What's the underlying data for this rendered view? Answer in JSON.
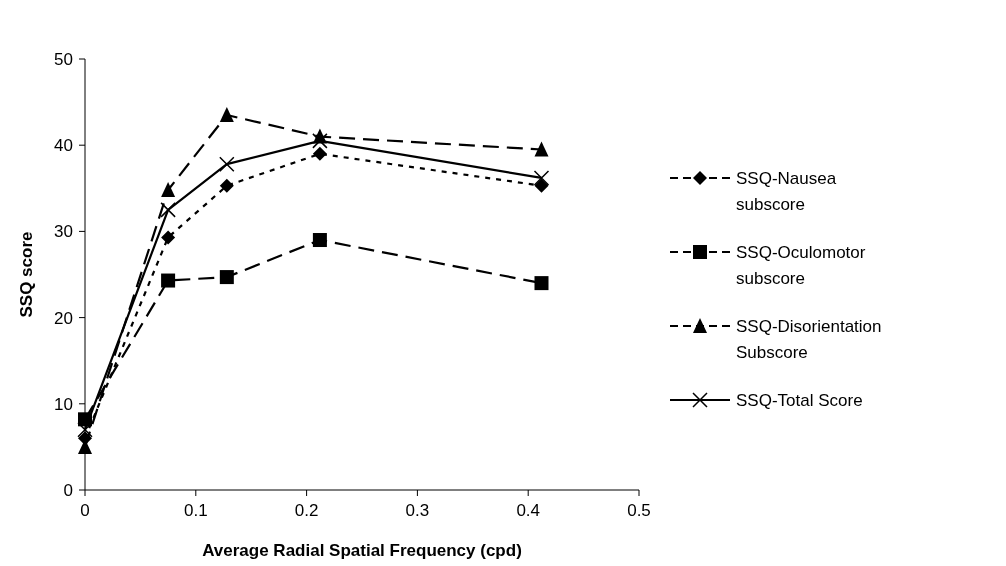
{
  "chart_data": {
    "type": "line",
    "xlabel": "Average Radial Spatial Frequency (cpd)",
    "ylabel": "SSQ score",
    "x": [
      0,
      0.075,
      0.128,
      0.212,
      0.412
    ],
    "xlim": [
      0,
      0.5
    ],
    "xticks": [
      0,
      0.1,
      0.2,
      0.3,
      0.4,
      0.5
    ],
    "ylim": [
      0,
      50
    ],
    "yticks": [
      0,
      10,
      20,
      30,
      40,
      50
    ],
    "grid": false,
    "legend": "right",
    "series": [
      {
        "name": "SSQ-Nausea subscore",
        "color": "#000000",
        "marker": "diamond",
        "line_style": "dotted",
        "values": [
          6,
          29.3,
          35.3,
          39,
          35.3
        ]
      },
      {
        "name": "SSQ-Oculomotor subscore",
        "color": "#000000",
        "marker": "square",
        "line_style": "dashed",
        "values": [
          8.2,
          24.3,
          24.7,
          29,
          24
        ]
      },
      {
        "name": "SSQ-Disorientation Subscore",
        "color": "#000000",
        "marker": "triangle",
        "line_style": "dashed",
        "values": [
          5,
          34.8,
          43.5,
          41,
          39.5
        ]
      },
      {
        "name": "SSQ-Total Score",
        "color": "#000000",
        "marker": "cross",
        "line_style": "solid",
        "values": [
          7,
          32.5,
          37.8,
          40.5,
          36.2
        ]
      }
    ]
  }
}
